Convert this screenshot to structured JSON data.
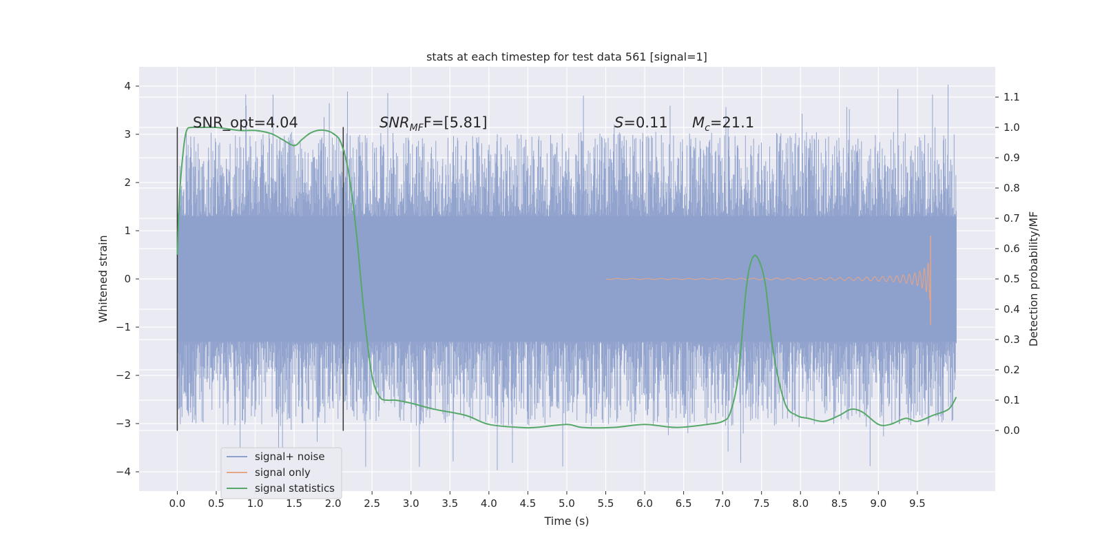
{
  "chart_data": {
    "type": "line",
    "title": "stats at each timestep for test data 561 [signal=1]",
    "xlabel": "Time (s)",
    "ylabel_left": "Whitened strain",
    "ylabel_right": "Detection probability/MF",
    "xlim": [
      -0.49,
      10.5
    ],
    "ylim_left": [
      -4.4,
      4.4
    ],
    "ylim_right": [
      -0.2,
      1.2
    ],
    "xticks": [
      0.0,
      0.5,
      1.0,
      1.5,
      2.0,
      2.5,
      3.0,
      3.5,
      4.0,
      4.5,
      5.0,
      5.5,
      6.0,
      6.5,
      7.0,
      7.5,
      8.0,
      8.5,
      9.0,
      9.5
    ],
    "xtick_labels": [
      "0.0",
      "0.5",
      "1.0",
      "1.5",
      "2.0",
      "2.5",
      "3.0",
      "3.5",
      "4.0",
      "4.5",
      "5.0",
      "5.5",
      "6.0",
      "6.5",
      "7.0",
      "7.5",
      "8.0",
      "8.5",
      "9.0",
      "9.5"
    ],
    "yticks_left": [
      4,
      3,
      2,
      1,
      0,
      -1,
      -2,
      -3,
      -4
    ],
    "ytick_labels_left": [
      "4",
      "3",
      "2",
      "1",
      "0",
      "−1",
      "−2",
      "−3",
      "−4"
    ],
    "yticks_right": [
      1.1,
      1.0,
      0.9,
      0.8,
      0.7,
      0.6,
      0.5,
      0.4,
      0.3,
      0.2,
      0.1,
      0.0
    ],
    "ytick_labels_right": [
      "1.1",
      "1.0",
      "0.9",
      "0.8",
      "0.7",
      "0.6",
      "0.5",
      "0.4",
      "0.3",
      "0.2",
      "0.1",
      "0.0"
    ],
    "grid": true,
    "legend_position": "lower-left",
    "colors": {
      "noise": "#8da0cb",
      "signal": "#e5a587",
      "stats": "#55a868",
      "vline": "#333333",
      "background": "#eaeaf2"
    },
    "series": [
      {
        "name": "signal+ noise",
        "kind": "noise",
        "x_start": 0.0,
        "x_end": 10.0,
        "envelope": 1.3,
        "spike_max": 4.05,
        "spike_min": -4.0
      },
      {
        "name": "signal only",
        "kind": "chirp",
        "x_start": 5.5,
        "x_end": 9.67,
        "peak_amplitude": 0.9,
        "peak_negative": -0.95
      },
      {
        "name": "signal statistics",
        "kind": "line",
        "axis": "right",
        "x": [
          0.0,
          0.03,
          0.08,
          0.12,
          0.18,
          0.3,
          0.5,
          0.8,
          1.0,
          1.2,
          1.35,
          1.5,
          1.6,
          1.7,
          1.8,
          1.9,
          2.0,
          2.1,
          2.2,
          2.3,
          2.4,
          2.5,
          2.6,
          2.7,
          2.8,
          3.0,
          3.3,
          3.7,
          4.0,
          4.4,
          4.6,
          5.0,
          5.2,
          5.6,
          6.0,
          6.4,
          6.8,
          7.0,
          7.1,
          7.2,
          7.3,
          7.37,
          7.45,
          7.55,
          7.65,
          7.8,
          7.95,
          8.1,
          8.3,
          8.5,
          8.65,
          8.8,
          9.0,
          9.15,
          9.35,
          9.5,
          9.7,
          9.9,
          10.0
        ],
        "y": [
          0.58,
          0.78,
          0.93,
          0.99,
          1.0,
          1.0,
          1.0,
          0.99,
          0.99,
          0.98,
          0.96,
          0.94,
          0.96,
          0.98,
          0.99,
          0.99,
          0.98,
          0.95,
          0.85,
          0.65,
          0.38,
          0.18,
          0.11,
          0.1,
          0.1,
          0.09,
          0.07,
          0.05,
          0.02,
          0.01,
          0.01,
          0.02,
          0.01,
          0.01,
          0.02,
          0.01,
          0.02,
          0.03,
          0.06,
          0.18,
          0.46,
          0.56,
          0.57,
          0.48,
          0.26,
          0.09,
          0.05,
          0.04,
          0.03,
          0.05,
          0.07,
          0.06,
          0.02,
          0.02,
          0.04,
          0.03,
          0.05,
          0.07,
          0.11
        ]
      }
    ],
    "vlines": [
      0.0,
      2.13
    ],
    "vline_range": [
      -3.15,
      3.15
    ],
    "annotations": [
      {
        "text": "SNR_opt=4.04",
        "x": 0.2,
        "y": 3.2
      },
      {
        "text_main": "SNR",
        "text_sub": "MF",
        "text_tail": "F=[5.81]",
        "x": 2.6,
        "y": 3.2
      },
      {
        "text_main": "S",
        "text_tail": "=0.11",
        "x": 5.6,
        "y": 3.2
      },
      {
        "text_main": "M",
        "text_sub": "c",
        "text_tail": "=21.1",
        "x": 6.6,
        "y": 3.2
      }
    ]
  }
}
